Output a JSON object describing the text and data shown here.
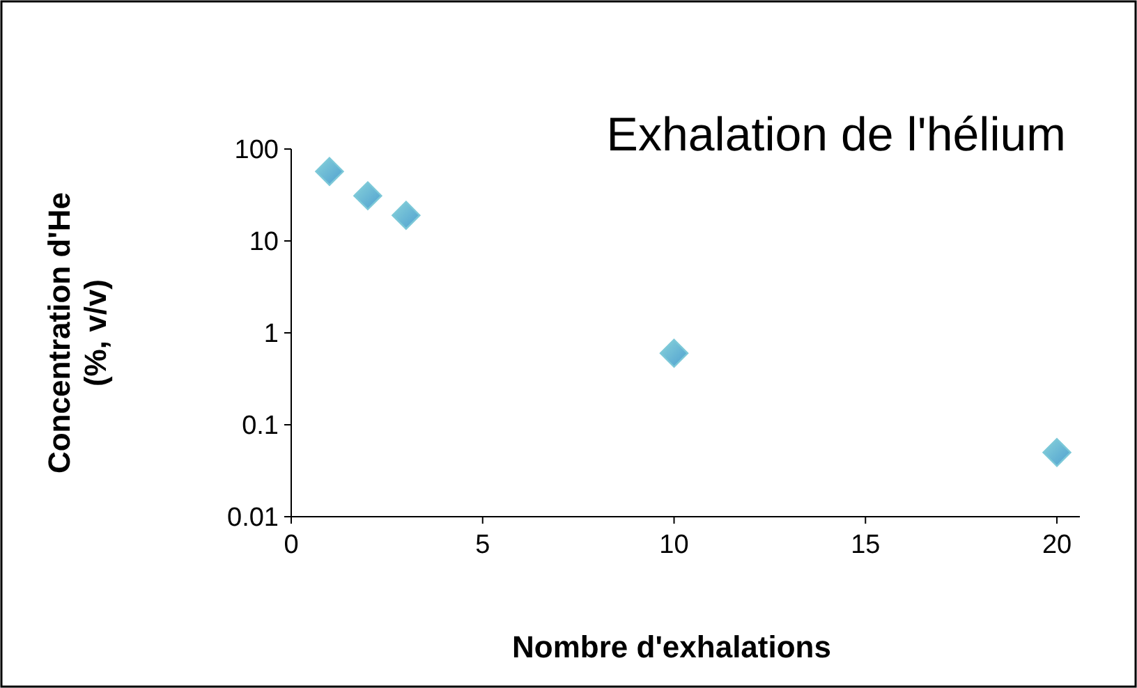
{
  "chart_data": {
    "type": "scatter",
    "title": "Exhalation de l'hélium",
    "xlabel": "Nombre d'exhalations",
    "ylabel": "Concentration d'He\n(%, v/v)",
    "x": [
      1,
      2,
      3,
      10,
      20
    ],
    "series": [
      {
        "color": "#7cc8d8",
        "values": [
          57,
          31,
          19,
          0.6,
          0.05
        ]
      }
    ],
    "xlim": [
      0,
      20.6
    ],
    "xticks": [
      0,
      5,
      10,
      15,
      20
    ],
    "ylim": [
      0.01,
      100
    ],
    "yticks": [
      0.01,
      0.1,
      1,
      10,
      100
    ],
    "log": "y",
    "grid": false,
    "marker": "diamond"
  }
}
